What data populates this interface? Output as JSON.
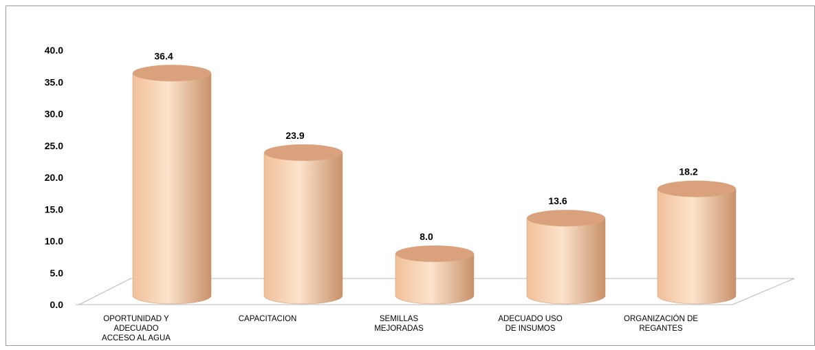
{
  "chart_data": {
    "type": "bar",
    "style": "3d-cylinder",
    "categories": [
      [
        "OPORTUNIDAD Y",
        "ADECUADO",
        "ACCESO AL AGUA"
      ],
      [
        "CAPACITACION"
      ],
      [
        "SEMILLAS",
        "MEJORADAS"
      ],
      [
        "ADECUADO USO",
        "DE INSUMOS"
      ],
      [
        "ORGANIZACIÓN DE",
        "REGANTES"
      ]
    ],
    "values": [
      36.4,
      23.9,
      8.0,
      13.6,
      18.2
    ],
    "data_labels": [
      "36.4",
      "23.9",
      "8.0",
      "13.6",
      "18.2"
    ],
    "yticks": [
      "0.0",
      "5.0",
      "10.0",
      "15.0",
      "20.0",
      "25.0",
      "30.0",
      "35.0",
      "40.0"
    ],
    "ylim": [
      0,
      40
    ],
    "title": "",
    "xlabel": "",
    "ylabel": "",
    "grid": false,
    "legend": "none",
    "colors": {
      "bar_light": "#FCE3CB",
      "bar_mid": "#F2C09A",
      "bar_dark": "#C8916A",
      "bar_top": "#D9A27C",
      "frame": "#9A9A9A",
      "floor_line": "#B8B8B8"
    }
  }
}
